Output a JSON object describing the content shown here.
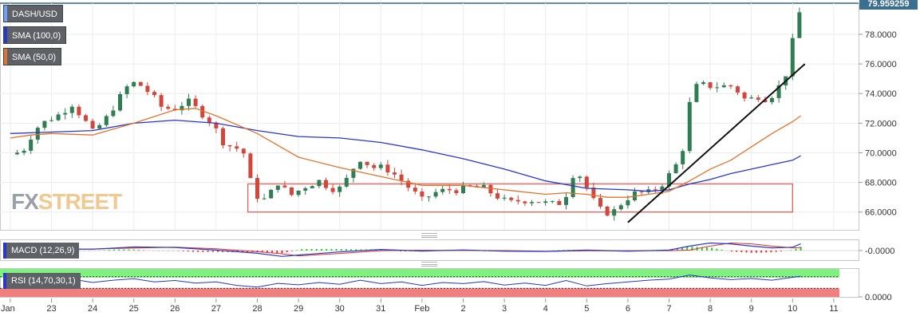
{
  "symbol": "DASH/USD",
  "indicators": {
    "sma100": {
      "label": "SMA (100,0)",
      "color": "#2838c8"
    },
    "sma50": {
      "label": "SMA (50,0)",
      "color": "#e0742c"
    },
    "macd": {
      "label": "MACD (12,26,9)",
      "zero_label": "-0.0000"
    },
    "rsi": {
      "label": "RSI (14,70,30,1)",
      "zero_label": "0.0000"
    }
  },
  "last_price": "79.959259",
  "watermark": {
    "part1": "FX",
    "part2": "STREET"
  },
  "colors": {
    "bull": "#2f7d52",
    "bear": "#d2463c",
    "support_box": "#e0605a",
    "trendline": "#111111",
    "price_tag": "#3c6e8f",
    "rsi_overbought": "#80f080",
    "rsi_oversold": "#f08080",
    "rsi_line": "#2838c8"
  },
  "chart_data": {
    "type": "candlestick",
    "y_range": [
      64.8,
      80.1
    ],
    "y_ticks": [
      "78.0000",
      "76.0000",
      "74.0000",
      "72.0000",
      "70.0000",
      "68.0000",
      "66.0000"
    ],
    "x_tick_labels": [
      "Jan",
      "23",
      "24",
      "25",
      "26",
      "27",
      "28",
      "29",
      "30",
      "31",
      "Feb",
      "2",
      "3",
      "4",
      "5",
      "6",
      "7",
      "8",
      "9",
      "10",
      "11"
    ],
    "close_keypoints": [
      [
        22.0,
        69.9
      ],
      [
        22.3,
        70.1
      ],
      [
        22.6,
        71.6
      ],
      [
        22.9,
        72.2
      ],
      [
        23.2,
        72.6
      ],
      [
        23.5,
        73.3
      ],
      [
        23.8,
        72.2
      ],
      [
        24.0,
        71.4
      ],
      [
        24.3,
        72.2
      ],
      [
        24.6,
        73.5
      ],
      [
        24.9,
        74.7
      ],
      [
        25.1,
        74.7
      ],
      [
        25.4,
        74.0
      ],
      [
        25.7,
        73.0
      ],
      [
        26.0,
        73.0
      ],
      [
        26.3,
        73.5
      ],
      [
        26.6,
        72.8
      ],
      [
        26.9,
        72.0
      ],
      [
        27.2,
        70.6
      ],
      [
        27.5,
        70.3
      ],
      [
        27.7,
        69.9
      ],
      [
        27.9,
        67.2
      ],
      [
        28.2,
        66.8
      ],
      [
        28.5,
        68.0
      ],
      [
        28.8,
        67.1
      ],
      [
        29.2,
        67.8
      ],
      [
        29.5,
        68.1
      ],
      [
        29.8,
        67.6
      ],
      [
        30.1,
        67.6
      ],
      [
        30.2,
        68.5
      ],
      [
        30.5,
        69.6
      ],
      [
        30.8,
        69.0
      ],
      [
        31.1,
        69.0
      ],
      [
        31.4,
        68.4
      ],
      [
        31.7,
        67.6
      ],
      [
        32.0,
        66.8
      ],
      [
        32.3,
        67.3
      ],
      [
        32.6,
        67.5
      ],
      [
        32.9,
        67.5
      ],
      [
        33.2,
        67.7
      ],
      [
        33.5,
        67.6
      ],
      [
        33.8,
        67.1
      ],
      [
        34.1,
        66.6
      ],
      [
        34.4,
        66.8
      ],
      [
        34.7,
        66.8
      ],
      [
        35.0,
        66.6
      ],
      [
        35.3,
        66.5
      ],
      [
        35.5,
        67.2
      ],
      [
        35.7,
        68.8
      ],
      [
        35.9,
        68.3
      ],
      [
        36.1,
        67.0
      ],
      [
        36.4,
        65.9
      ],
      [
        36.7,
        66.1
      ],
      [
        36.9,
        66.8
      ],
      [
        37.2,
        67.3
      ],
      [
        37.5,
        67.3
      ],
      [
        37.8,
        67.8
      ],
      [
        38.0,
        68.5
      ],
      [
        38.3,
        69.7
      ],
      [
        38.5,
        73.3
      ],
      [
        38.7,
        74.7
      ],
      [
        38.9,
        74.5
      ],
      [
        39.2,
        74.5
      ],
      [
        39.5,
        74.5
      ],
      [
        39.7,
        74.1
      ],
      [
        39.9,
        73.4
      ],
      [
        40.1,
        73.9
      ],
      [
        40.4,
        73.6
      ],
      [
        40.6,
        74.2
      ],
      [
        40.8,
        75.0
      ],
      [
        40.9,
        76.0
      ],
      [
        41.0,
        77.5
      ],
      [
        41.1,
        76.9
      ],
      [
        41.18,
        79.96
      ]
    ],
    "sma100": [
      [
        22.0,
        71.3
      ],
      [
        23.0,
        71.4
      ],
      [
        24.0,
        71.5
      ],
      [
        25.0,
        72.0
      ],
      [
        26.0,
        72.2
      ],
      [
        27.0,
        72.0
      ],
      [
        28.0,
        71.5
      ],
      [
        29.0,
        71.1
      ],
      [
        30.0,
        71.0
      ],
      [
        31.0,
        70.7
      ],
      [
        32.0,
        70.2
      ],
      [
        33.0,
        69.6
      ],
      [
        34.0,
        68.9
      ],
      [
        35.0,
        68.1
      ],
      [
        36.0,
        67.6
      ],
      [
        37.0,
        67.5
      ],
      [
        37.5,
        67.4
      ],
      [
        38.0,
        67.5
      ],
      [
        38.5,
        67.9
      ],
      [
        39.0,
        68.2
      ],
      [
        39.5,
        68.6
      ],
      [
        40.0,
        68.9
      ],
      [
        40.5,
        69.2
      ],
      [
        41.0,
        69.5
      ],
      [
        41.2,
        69.8
      ]
    ],
    "sma50": [
      [
        22.0,
        71.0
      ],
      [
        22.5,
        71.2
      ],
      [
        23.0,
        71.3
      ],
      [
        24.0,
        71.2
      ],
      [
        25.0,
        72.0
      ],
      [
        26.0,
        72.9
      ],
      [
        26.5,
        73.0
      ],
      [
        27.0,
        72.5
      ],
      [
        28.0,
        71.3
      ],
      [
        28.5,
        70.5
      ],
      [
        29.0,
        69.7
      ],
      [
        30.0,
        69.0
      ],
      [
        31.0,
        68.4
      ],
      [
        32.0,
        67.8
      ],
      [
        33.0,
        67.8
      ],
      [
        34.0,
        67.5
      ],
      [
        35.0,
        67.2
      ],
      [
        35.5,
        67.3
      ],
      [
        36.0,
        67.2
      ],
      [
        36.5,
        67.0
      ],
      [
        37.0,
        67.0
      ],
      [
        37.5,
        67.2
      ],
      [
        38.0,
        67.4
      ],
      [
        38.5,
        68.1
      ],
      [
        39.0,
        68.9
      ],
      [
        39.5,
        69.5
      ],
      [
        40.0,
        70.4
      ],
      [
        40.5,
        71.3
      ],
      [
        41.0,
        72.1
      ],
      [
        41.2,
        72.5
      ]
    ],
    "trendline": [
      [
        37.0,
        65.3
      ],
      [
        41.3,
        76.0
      ]
    ],
    "support_zone": {
      "x": [
        27.77,
        41.0
      ],
      "y": [
        66.0,
        67.9
      ]
    },
    "macd_series": [
      [
        22.0,
        0.0
      ],
      [
        23.0,
        0.08
      ],
      [
        24.0,
        0.06
      ],
      [
        25.0,
        0.16
      ],
      [
        26.0,
        0.14
      ],
      [
        27.0,
        0.02
      ],
      [
        28.0,
        -0.12
      ],
      [
        28.6,
        -0.26
      ],
      [
        29.0,
        -0.2
      ],
      [
        30.0,
        -0.06
      ],
      [
        31.0,
        0.05
      ],
      [
        32.0,
        -0.02
      ],
      [
        33.0,
        0.03
      ],
      [
        34.0,
        -0.03
      ],
      [
        35.0,
        -0.04
      ],
      [
        36.0,
        0.02
      ],
      [
        37.0,
        -0.03
      ],
      [
        38.0,
        0.02
      ],
      [
        38.5,
        0.2
      ],
      [
        39.0,
        0.34
      ],
      [
        39.5,
        0.3
      ],
      [
        40.0,
        0.2
      ],
      [
        40.5,
        0.12
      ],
      [
        41.0,
        0.15
      ],
      [
        41.2,
        0.3
      ]
    ],
    "rsi_series": [
      [
        22.0,
        60
      ],
      [
        22.5,
        66
      ],
      [
        23.0,
        55
      ],
      [
        23.5,
        62
      ],
      [
        24.0,
        50
      ],
      [
        24.5,
        58
      ],
      [
        25.0,
        63
      ],
      [
        25.5,
        52
      ],
      [
        26.0,
        57
      ],
      [
        26.5,
        48
      ],
      [
        27.0,
        52
      ],
      [
        27.5,
        40
      ],
      [
        28.0,
        34
      ],
      [
        28.5,
        47
      ],
      [
        29.0,
        42
      ],
      [
        29.5,
        50
      ],
      [
        30.0,
        44
      ],
      [
        30.5,
        58
      ],
      [
        31.0,
        46
      ],
      [
        31.5,
        52
      ],
      [
        32.0,
        40
      ],
      [
        32.5,
        50
      ],
      [
        33.0,
        46
      ],
      [
        33.5,
        53
      ],
      [
        34.0,
        41
      ],
      [
        34.5,
        48
      ],
      [
        35.0,
        40
      ],
      [
        35.5,
        57
      ],
      [
        36.0,
        38
      ],
      [
        36.5,
        46
      ],
      [
        37.0,
        52
      ],
      [
        37.5,
        58
      ],
      [
        38.0,
        62
      ],
      [
        38.5,
        76
      ],
      [
        39.0,
        66
      ],
      [
        39.5,
        60
      ],
      [
        40.0,
        64
      ],
      [
        40.5,
        58
      ],
      [
        41.0,
        68
      ],
      [
        41.2,
        72
      ]
    ],
    "rsi_levels": {
      "overbought": 70,
      "oversold": 30
    }
  }
}
